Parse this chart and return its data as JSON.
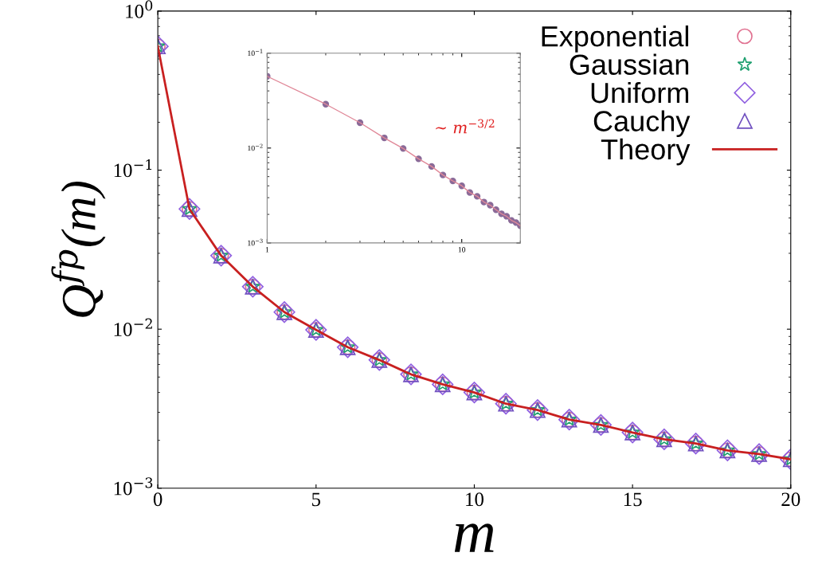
{
  "chart_data": [
    {
      "type": "scatter",
      "xlabel": "m",
      "ylabel": "Q$^{fp}$(m)",
      "x": [
        0,
        1,
        2,
        3,
        4,
        5,
        6,
        7,
        8,
        9,
        10,
        11,
        12,
        13,
        14,
        15,
        16,
        17,
        18,
        19,
        20
      ],
      "log": "y",
      "xlim": [
        0,
        20
      ],
      "ylim": [
        0.001,
        1
      ],
      "xticks": [
        0,
        5,
        10,
        15,
        20
      ],
      "yticks": [
        {
          "value": 0.001,
          "label": "10$^{−3}$"
        },
        {
          "value": 0.01,
          "label": "10$^{−2}$"
        },
        {
          "value": 0.1,
          "label": "10$^{−1}$"
        },
        {
          "value": 1,
          "label": "10$^{0}$"
        }
      ],
      "legend": "top right",
      "grid": false,
      "series": [
        {
          "name": "Exponential",
          "color": "#e07090",
          "marker": "circle",
          "values": [
            0.6,
            0.057,
            0.029,
            0.0185,
            0.0128,
            0.0099,
            0.0077,
            0.0064,
            0.0052,
            0.0045,
            0.004,
            0.0034,
            0.0031,
            0.0027,
            0.0025,
            0.00224,
            0.00203,
            0.00191,
            0.00173,
            0.00164,
            0.00152
          ]
        },
        {
          "name": "Gaussian",
          "color": "#20a070",
          "marker": "star",
          "values": [
            0.6,
            0.057,
            0.029,
            0.0185,
            0.0128,
            0.0099,
            0.0077,
            0.0064,
            0.0052,
            0.0045,
            0.004,
            0.0034,
            0.0031,
            0.0027,
            0.0025,
            0.00224,
            0.00203,
            0.00191,
            0.00173,
            0.00164,
            0.00152
          ]
        },
        {
          "name": "Uniform",
          "color": "#9060e0",
          "marker": "diamond",
          "values": [
            0.6,
            0.057,
            0.029,
            0.0185,
            0.0128,
            0.0099,
            0.0077,
            0.0064,
            0.0052,
            0.0045,
            0.004,
            0.0034,
            0.0031,
            0.0027,
            0.0025,
            0.00224,
            0.00203,
            0.00191,
            0.00173,
            0.00164,
            0.00152
          ]
        },
        {
          "name": "Cauchy",
          "color": "#7050c0",
          "marker": "triangle",
          "values": [
            0.6,
            0.057,
            0.029,
            0.0185,
            0.0128,
            0.0099,
            0.0077,
            0.0064,
            0.0052,
            0.0045,
            0.004,
            0.0034,
            0.0031,
            0.0027,
            0.0025,
            0.00224,
            0.00203,
            0.00191,
            0.00173,
            0.00164,
            0.00152
          ]
        },
        {
          "name": "Theory",
          "type": "line",
          "color": "#c82020",
          "marker": "none",
          "values": [
            0.6,
            0.057,
            0.029,
            0.0185,
            0.0128,
            0.0099,
            0.0077,
            0.0064,
            0.0052,
            0.0045,
            0.004,
            0.0034,
            0.0031,
            0.0027,
            0.0025,
            0.00224,
            0.00203,
            0.00191,
            0.00173,
            0.00164,
            0.00152
          ]
        }
      ]
    },
    {
      "type": "scatter",
      "x": [
        1,
        2,
        3,
        4,
        5,
        6,
        7,
        8,
        9,
        10,
        11,
        12,
        13,
        14,
        15,
        16,
        17,
        18,
        19,
        20
      ],
      "log": "xy",
      "xlim": [
        1,
        20
      ],
      "ylim": [
        0.001,
        0.1
      ],
      "xticks": [
        1,
        10
      ],
      "yticks": [
        {
          "value": 0.001,
          "label": "10$^{−3}$"
        },
        {
          "value": 0.01,
          "label": "10$^{−2}$"
        },
        {
          "value": 0.1,
          "label": "10$^{−1}$"
        }
      ],
      "grid": false,
      "annotations": [
        "∼ m$^{−3/2}$"
      ],
      "series": [
        {
          "color": "#8a6a98",
          "marker": "circle",
          "values": [
            0.057,
            0.029,
            0.0185,
            0.0128,
            0.0099,
            0.0077,
            0.0064,
            0.0052,
            0.0045,
            0.004,
            0.0034,
            0.0031,
            0.0027,
            0.0025,
            0.00224,
            0.00203,
            0.00191,
            0.00173,
            0.00164,
            0.00152
          ]
        },
        {
          "type": "line",
          "color": "#e08898",
          "marker": "none",
          "values": [
            0.057,
            0.029,
            0.0185,
            0.0128,
            0.0099,
            0.0077,
            0.0064,
            0.0052,
            0.0045,
            0.004,
            0.0034,
            0.0031,
            0.0027,
            0.0025,
            0.00224,
            0.00203,
            0.00191,
            0.00173,
            0.00164,
            0.00152
          ]
        }
      ]
    }
  ]
}
